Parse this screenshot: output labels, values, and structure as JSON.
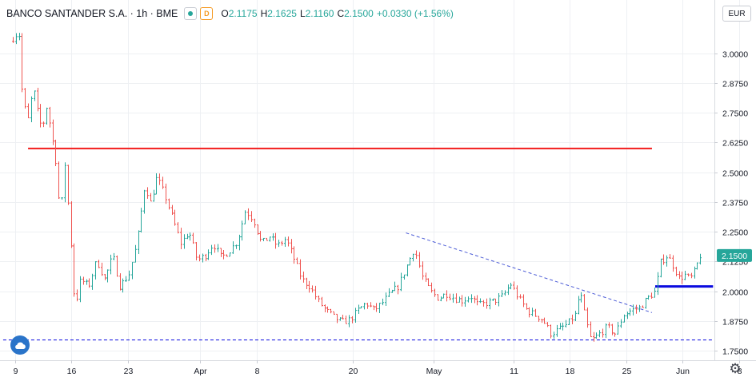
{
  "legend": {
    "symbol": "BANCO SANTANDER S.A. · 1h · BME",
    "open_label": "O",
    "open": "2.1175",
    "high_label": "H",
    "high": "2.1625",
    "low_label": "L",
    "low": "2.1160",
    "close_label": "C",
    "close": "2.1500",
    "change": "+0.0330 (+1.56%)",
    "badge_dot_icon": "market-open-dot-icon",
    "badge_d_label": "D"
  },
  "currency_label": "EUR",
  "colors": {
    "up": "#26a69a",
    "down": "#ef5350",
    "resistance": "#f31c1c",
    "support": "#0a0adf",
    "trendline": "#4b5bd6",
    "grid": "#eef0f3",
    "price_tag": "#26a69a"
  },
  "chart_data": {
    "type": "candlestick",
    "interval": "1h",
    "y_axis": {
      "min": 1.74,
      "max": 3.16,
      "ticks": [
        "3.0000",
        "2.8750",
        "2.7500",
        "2.6250",
        "2.5000",
        "2.3750",
        "2.2500",
        "2.1250",
        "2.0000",
        "1.8750",
        "1.7500"
      ],
      "position": "right"
    },
    "x_axis": {
      "ticks": [
        {
          "label": "9",
          "day": 0
        },
        {
          "label": "16",
          "day": 7
        },
        {
          "label": "23",
          "day": 14
        },
        {
          "label": "Apr",
          "day": 23
        },
        {
          "label": "8",
          "day": 30
        },
        {
          "label": "20",
          "day": 42
        },
        {
          "label": "May",
          "day": 52
        },
        {
          "label": "11",
          "day": 62
        },
        {
          "label": "18",
          "day": 69
        },
        {
          "label": "25",
          "day": 76
        },
        {
          "label": "Jun",
          "day": 83
        },
        {
          "label": "8",
          "day": 90
        }
      ]
    },
    "last_price": "2.1500",
    "price_path": [
      {
        "day": -0.3,
        "price": 3.05
      },
      {
        "day": 0.5,
        "price": 3.08
      },
      {
        "day": 0.8,
        "price": 3.1
      },
      {
        "day": 1.3,
        "price": 2.8
      },
      {
        "day": 2.0,
        "price": 2.72
      },
      {
        "day": 2.6,
        "price": 2.86
      },
      {
        "day": 3.2,
        "price": 2.74
      },
      {
        "day": 3.7,
        "price": 2.68
      },
      {
        "day": 4.3,
        "price": 2.78
      },
      {
        "day": 5.4,
        "price": 2.55
      },
      {
        "day": 6.0,
        "price": 2.3
      },
      {
        "day": 6.5,
        "price": 2.55
      },
      {
        "day": 7.2,
        "price": 2.25
      },
      {
        "day": 7.8,
        "price": 1.93
      },
      {
        "day": 8.5,
        "price": 2.05
      },
      {
        "day": 9.5,
        "price": 2.02
      },
      {
        "day": 10.5,
        "price": 2.13
      },
      {
        "day": 11.5,
        "price": 2.05
      },
      {
        "day": 12.5,
        "price": 2.15
      },
      {
        "day": 13.4,
        "price": 2.02
      },
      {
        "day": 14.5,
        "price": 2.07
      },
      {
        "day": 15.5,
        "price": 2.2
      },
      {
        "day": 16.5,
        "price": 2.45
      },
      {
        "day": 17.2,
        "price": 2.37
      },
      {
        "day": 18.0,
        "price": 2.48
      },
      {
        "day": 19.0,
        "price": 2.4
      },
      {
        "day": 20.0,
        "price": 2.3
      },
      {
        "day": 21.0,
        "price": 2.2
      },
      {
        "day": 22.0,
        "price": 2.25
      },
      {
        "day": 23.0,
        "price": 2.13
      },
      {
        "day": 24.0,
        "price": 2.15
      },
      {
        "day": 25.0,
        "price": 2.2
      },
      {
        "day": 26.0,
        "price": 2.14
      },
      {
        "day": 27.0,
        "price": 2.17
      },
      {
        "day": 28.0,
        "price": 2.21
      },
      {
        "day": 29.0,
        "price": 2.34
      },
      {
        "day": 30.0,
        "price": 2.3
      },
      {
        "day": 31.0,
        "price": 2.2
      },
      {
        "day": 32.0,
        "price": 2.23
      },
      {
        "day": 33.0,
        "price": 2.19
      },
      {
        "day": 34.0,
        "price": 2.22
      },
      {
        "day": 35.0,
        "price": 2.14
      },
      {
        "day": 36.0,
        "price": 2.05
      },
      {
        "day": 37.0,
        "price": 2.02
      },
      {
        "day": 38.0,
        "price": 1.96
      },
      {
        "day": 39.0,
        "price": 1.92
      },
      {
        "day": 40.0,
        "price": 1.89
      },
      {
        "day": 41.0,
        "price": 1.87
      },
      {
        "day": 42.0,
        "price": 1.88
      },
      {
        "day": 43.0,
        "price": 1.92
      },
      {
        "day": 44.0,
        "price": 1.95
      },
      {
        "day": 45.0,
        "price": 1.92
      },
      {
        "day": 46.0,
        "price": 1.95
      },
      {
        "day": 47.0,
        "price": 1.99
      },
      {
        "day": 48.0,
        "price": 2.02
      },
      {
        "day": 49.0,
        "price": 2.1
      },
      {
        "day": 50.0,
        "price": 2.18
      },
      {
        "day": 51.0,
        "price": 2.06
      },
      {
        "day": 52.0,
        "price": 2.0
      },
      {
        "day": 53.0,
        "price": 1.97
      },
      {
        "day": 54.0,
        "price": 1.99
      },
      {
        "day": 55.0,
        "price": 1.97
      },
      {
        "day": 56.0,
        "price": 1.96
      },
      {
        "day": 57.0,
        "price": 1.98
      },
      {
        "day": 58.0,
        "price": 1.94
      },
      {
        "day": 59.0,
        "price": 1.95
      },
      {
        "day": 60.0,
        "price": 1.96
      },
      {
        "day": 61.0,
        "price": 1.98
      },
      {
        "day": 62.0,
        "price": 2.03
      },
      {
        "day": 63.0,
        "price": 1.97
      },
      {
        "day": 64.0,
        "price": 1.92
      },
      {
        "day": 65.0,
        "price": 1.9
      },
      {
        "day": 66.0,
        "price": 1.88
      },
      {
        "day": 67.0,
        "price": 1.82
      },
      {
        "day": 68.0,
        "price": 1.84
      },
      {
        "day": 69.0,
        "price": 1.86
      },
      {
        "day": 70.0,
        "price": 1.9
      },
      {
        "day": 70.6,
        "price": 2.0
      },
      {
        "day": 71.3,
        "price": 1.88
      },
      {
        "day": 72.0,
        "price": 1.79
      },
      {
        "day": 73.0,
        "price": 1.82
      },
      {
        "day": 74.0,
        "price": 1.85
      },
      {
        "day": 75.0,
        "price": 1.82
      },
      {
        "day": 76.0,
        "price": 1.9
      },
      {
        "day": 77.0,
        "price": 1.92
      },
      {
        "day": 78.0,
        "price": 1.93
      },
      {
        "day": 79.0,
        "price": 1.97
      },
      {
        "day": 80.0,
        "price": 2.0
      },
      {
        "day": 80.6,
        "price": 2.12
      },
      {
        "day": 81.5,
        "price": 2.15
      },
      {
        "day": 82.3,
        "price": 2.1
      },
      {
        "day": 83.0,
        "price": 2.05
      },
      {
        "day": 83.6,
        "price": 2.07
      },
      {
        "day": 84.3,
        "price": 2.05
      },
      {
        "day": 85.0,
        "price": 2.09
      },
      {
        "day": 85.5,
        "price": 2.15
      }
    ],
    "annotations": [
      {
        "type": "horizontal",
        "name": "resistance",
        "price": 2.6,
        "from_day": 1.6,
        "to_day": 79.2,
        "color_key": "resistance",
        "style": "solid"
      },
      {
        "type": "horizontal",
        "name": "support",
        "price": 2.02,
        "from_day": 79.6,
        "to_day": 86.8,
        "color_key": "support",
        "style": "solid"
      },
      {
        "type": "horizontal",
        "name": "bottom",
        "price": 1.795,
        "from_day": -1.5,
        "to_day": 91.0,
        "color_key": "support",
        "style": "dashed"
      },
      {
        "type": "trendline",
        "name": "descending-trend",
        "p1": {
          "day": 48.6,
          "price": 2.245
        },
        "p2": {
          "day": 79.2,
          "price": 1.91
        },
        "color_key": "trendline",
        "style": "dashed"
      }
    ]
  },
  "logo_icon": "tradingview-cloud-icon",
  "settings_icon": "gear-icon"
}
